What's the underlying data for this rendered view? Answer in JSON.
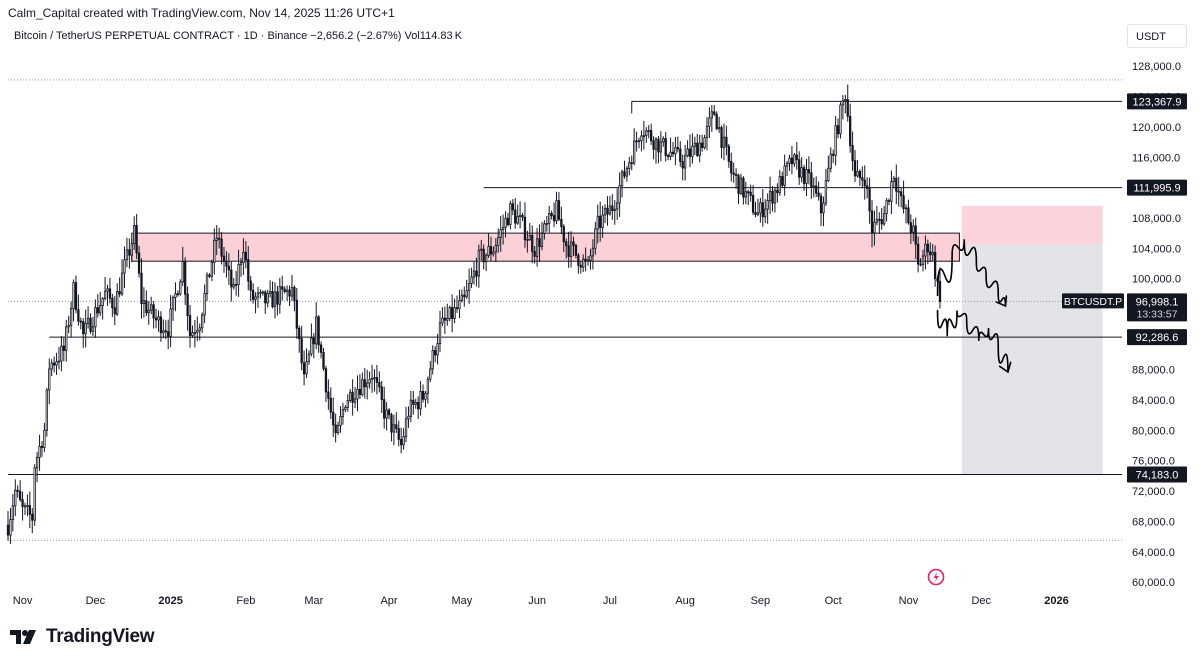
{
  "header": {
    "attribution": "Calm_Capital created with TradingView.com, Nov 14, 2025 11:26 UTC+1",
    "symbol": "Bitcoin / TetherUS PERPETUAL CONTRACT · 1D · Binance",
    "change": "−2,656.2 (−2.67%)",
    "volume": "Vol114.83 K",
    "currency": "USDT"
  },
  "footer": {
    "brand": "TradingView"
  },
  "colors": {
    "up": "#131722",
    "down": "#131722",
    "zone": "#fbd0d6",
    "zone_border": "#131722",
    "target_zone": "#e3e4e7",
    "stop_zone": "#fbd3da"
  },
  "chart_data": {
    "type": "candlestick",
    "x_ticks": [
      "Nov",
      "Dec",
      "2025",
      "Feb",
      "Mar",
      "Apr",
      "May",
      "Jun",
      "Jul",
      "Aug",
      "Sep",
      "Oct",
      "Nov",
      "Dec",
      "2026"
    ],
    "y_ticks": [
      "128,000.0",
      "124,000.0",
      "120,000.0",
      "116,000.0",
      "112,000.0",
      "108,000.0",
      "104,000.0",
      "100,000.0",
      "96,000.0",
      "92,000.0",
      "88,000.0",
      "84,000.0",
      "80,000.0",
      "76,000.0",
      "72,000.0",
      "68,000.0",
      "64,000.0",
      "60,000.0"
    ],
    "ylim": [
      58700,
      130400
    ],
    "xlim": [
      "2024-10-26",
      "2026-01-28"
    ],
    "price_labels": [
      {
        "text": "123,367.9",
        "value": 123367.9,
        "style": "dark"
      },
      {
        "text": "111,995.9",
        "value": 111995.9,
        "style": "dark"
      },
      {
        "text": "92,286.6",
        "value": 92286.6,
        "style": "dark"
      },
      {
        "text": "74,183.0",
        "value": 74183.0,
        "style": "dark"
      }
    ],
    "current": {
      "symbol": "BTCUSDT.P",
      "price": "96,998.1",
      "value": 96998.1,
      "countdown": "13:33:57"
    },
    "horizontal_lines": [
      {
        "value": 123367.9,
        "from": "2025-07-10",
        "to": "2026-02-10"
      },
      {
        "value": 111995.9,
        "from": "2025-05-10",
        "to": "2026-02-10"
      },
      {
        "value": 92286.6,
        "from": "2024-11-12",
        "to": "2026-02-10"
      },
      {
        "value": 74183.0,
        "from": "2024-10-26",
        "to": "2026-02-10"
      }
    ],
    "dotted_lines": [
      {
        "value": 126200
      },
      {
        "value": 65500
      },
      {
        "value": 96998.1
      }
    ],
    "resistance_zone": {
      "from": "2024-12-16",
      "to": "2025-11-22",
      "low": 102300,
      "high": 106000
    },
    "stop_zone": {
      "from": "2025-11-23",
      "to": "2026-01-20",
      "low": 104500,
      "high": 109600
    },
    "target_zone": {
      "from": "2025-11-23",
      "to": "2026-01-20",
      "low": 74183,
      "high": 104500
    },
    "projections": [
      {
        "points": [
          [
            "2025-11-13",
            97800
          ],
          [
            "2025-11-19",
            103000
          ],
          [
            "2025-11-24",
            105200
          ],
          [
            "2025-11-29",
            102000
          ],
          [
            "2025-12-03",
            100500
          ],
          [
            "2025-12-08",
            98000
          ],
          [
            "2025-12-11",
            96400
          ]
        ]
      },
      {
        "points": [
          [
            "2025-11-13",
            95800
          ],
          [
            "2025-11-17",
            92400
          ],
          [
            "2025-11-21",
            95800
          ],
          [
            "2025-11-25",
            94600
          ],
          [
            "2025-11-30",
            91800
          ],
          [
            "2025-12-04",
            93500
          ],
          [
            "2025-12-08",
            91200
          ],
          [
            "2025-12-12",
            87700
          ]
        ]
      }
    ],
    "ohlc_anchors": [
      [
        "2024-10-26",
        67500
      ],
      [
        "2024-10-29",
        72000
      ],
      [
        "2024-11-01",
        69500
      ],
      [
        "2024-11-05",
        68500
      ],
      [
        "2024-11-06",
        75500
      ],
      [
        "2024-11-10",
        80000
      ],
      [
        "2024-11-12",
        88500
      ],
      [
        "2024-11-18",
        90500
      ],
      [
        "2024-11-22",
        98500
      ],
      [
        "2024-11-26",
        92500
      ],
      [
        "2024-12-05",
        98000
      ],
      [
        "2024-12-09",
        96500
      ],
      [
        "2024-12-13",
        101500
      ],
      [
        "2024-12-17",
        106000
      ],
      [
        "2024-12-20",
        97200
      ],
      [
        "2024-12-26",
        94500
      ],
      [
        "2024-12-31",
        93500
      ],
      [
        "2025-01-06",
        102000
      ],
      [
        "2025-01-09",
        92700
      ],
      [
        "2025-01-13",
        94500
      ],
      [
        "2025-01-20",
        105500
      ],
      [
        "2025-01-27",
        98000
      ],
      [
        "2025-01-31",
        104500
      ],
      [
        "2025-02-03",
        97500
      ],
      [
        "2025-02-10",
        97000
      ],
      [
        "2025-02-20",
        98500
      ],
      [
        "2025-02-25",
        86500
      ],
      [
        "2025-03-02",
        94000
      ],
      [
        "2025-03-10",
        78500
      ],
      [
        "2025-03-14",
        84000
      ],
      [
        "2025-03-20",
        86000
      ],
      [
        "2025-03-25",
        87500
      ],
      [
        "2025-03-30",
        82500
      ],
      [
        "2025-04-06",
        78000
      ],
      [
        "2025-04-09",
        82500
      ],
      [
        "2025-04-15",
        84500
      ],
      [
        "2025-04-22",
        93500
      ],
      [
        "2025-05-02",
        97000
      ],
      [
        "2025-05-08",
        102500
      ],
      [
        "2025-05-14",
        104000
      ],
      [
        "2025-05-21",
        109000
      ],
      [
        "2025-05-25",
        107500
      ],
      [
        "2025-05-31",
        104000
      ],
      [
        "2025-06-09",
        109000
      ],
      [
        "2025-06-13",
        104500
      ],
      [
        "2025-06-22",
        101500
      ],
      [
        "2025-06-26",
        107000
      ],
      [
        "2025-07-02",
        109500
      ],
      [
        "2025-07-10",
        116500
      ],
      [
        "2025-07-14",
        120000
      ],
      [
        "2025-07-20",
        118000
      ],
      [
        "2025-07-31",
        115500
      ],
      [
        "2025-08-09",
        118500
      ],
      [
        "2025-08-13",
        122000
      ],
      [
        "2025-08-20",
        114000
      ],
      [
        "2025-08-31",
        108500
      ],
      [
        "2025-09-08",
        112000
      ],
      [
        "2025-09-14",
        115500
      ],
      [
        "2025-09-22",
        112500
      ],
      [
        "2025-09-26",
        109000
      ],
      [
        "2025-10-01",
        117500
      ],
      [
        "2025-10-06",
        124500
      ],
      [
        "2025-10-10",
        113000
      ],
      [
        "2025-10-14",
        113500
      ],
      [
        "2025-10-17",
        106500
      ],
      [
        "2025-10-22",
        108500
      ],
      [
        "2025-10-26",
        114000
      ],
      [
        "2025-10-29",
        110000
      ],
      [
        "2025-11-03",
        106000
      ],
      [
        "2025-11-05",
        101500
      ],
      [
        "2025-11-09",
        104500
      ],
      [
        "2025-11-11",
        103000
      ],
      [
        "2025-11-14",
        96998
      ]
    ]
  }
}
